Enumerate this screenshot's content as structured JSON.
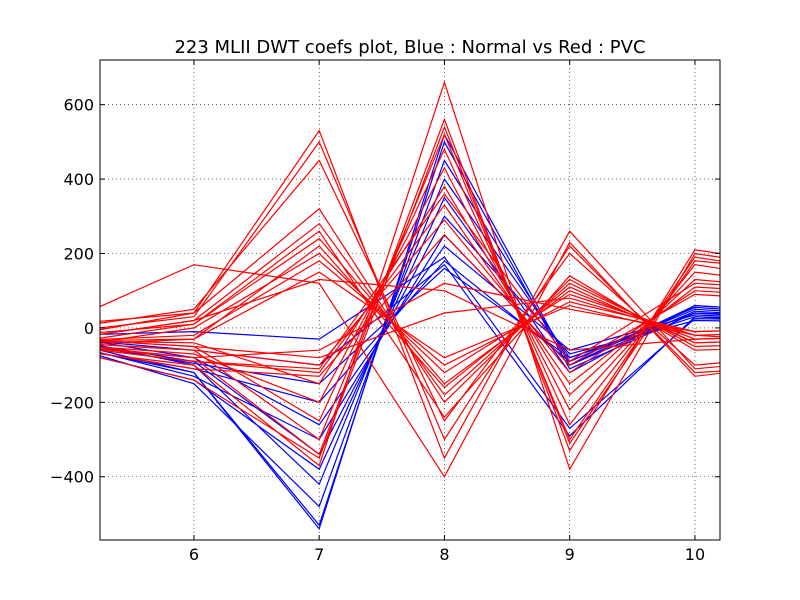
{
  "chart_data": {
    "type": "line",
    "title": "223 MLII DWT coefs plot, Blue : Normal vs Red : PVC",
    "xlabel": "",
    "ylabel": "",
    "xlim": [
      5.25,
      10.2
    ],
    "ylim": [
      -570,
      720
    ],
    "x_ticks": [
      6,
      7,
      8,
      9,
      10
    ],
    "y_ticks": [
      -400,
      -200,
      0,
      200,
      400,
      600
    ],
    "y_tick_labels": [
      "−400",
      "−200",
      "0",
      "200",
      "400",
      "600"
    ],
    "grid": true,
    "legend": "none",
    "x": [
      5,
      6,
      7,
      8,
      9,
      10,
      11
    ],
    "series": [
      {
        "color": "#0000ff",
        "role": "normal",
        "values": [
          -40,
          -120,
          -530,
          500,
          -110,
          40,
          20
        ]
      },
      {
        "color": "#0000ff",
        "role": "normal",
        "values": [
          -50,
          -150,
          -480,
          450,
          -90,
          50,
          30
        ]
      },
      {
        "color": "#0000ff",
        "role": "normal",
        "values": [
          -30,
          -100,
          -420,
          400,
          -80,
          30,
          10
        ]
      },
      {
        "color": "#0000ff",
        "role": "normal",
        "values": [
          -60,
          -140,
          -380,
          350,
          -120,
          60,
          40
        ]
      },
      {
        "color": "#0000ff",
        "role": "normal",
        "values": [
          -35,
          -90,
          -340,
          300,
          -70,
          20,
          15
        ]
      },
      {
        "color": "#0000ff",
        "role": "normal",
        "values": [
          -45,
          -130,
          -300,
          250,
          -100,
          45,
          25
        ]
      },
      {
        "color": "#0000ff",
        "role": "normal",
        "values": [
          -25,
          -80,
          -260,
          220,
          -60,
          35,
          20
        ]
      },
      {
        "color": "#0000ff",
        "role": "normal",
        "values": [
          -55,
          -110,
          -200,
          180,
          -90,
          55,
          35
        ]
      },
      {
        "color": "#0000ff",
        "role": "normal",
        "values": [
          -40,
          -95,
          -150,
          160,
          -80,
          40,
          30
        ]
      },
      {
        "color": "#0000ff",
        "role": "normal",
        "values": [
          -30,
          -60,
          -100,
          170,
          -290,
          30,
          20
        ]
      },
      {
        "color": "#0000ff",
        "role": "normal",
        "values": [
          -20,
          -10,
          -30,
          190,
          -270,
          25,
          20
        ]
      },
      {
        "color": "#0000ff",
        "role": "normal",
        "values": [
          -50,
          -120,
          -540,
          520,
          -100,
          60,
          40
        ]
      },
      {
        "color": "#ff0000",
        "role": "pvc",
        "values": [
          20,
          170,
          120,
          -400,
          230,
          -130,
          -90
        ]
      },
      {
        "color": "#ff0000",
        "role": "pvc",
        "values": [
          10,
          40,
          530,
          -350,
          260,
          -110,
          -80
        ]
      },
      {
        "color": "#ff0000",
        "role": "pvc",
        "values": [
          -10,
          30,
          500,
          -300,
          220,
          -120,
          -100
        ]
      },
      {
        "color": "#ff0000",
        "role": "pvc",
        "values": [
          0,
          50,
          450,
          -250,
          200,
          -100,
          -70
        ]
      },
      {
        "color": "#ff0000",
        "role": "pvc",
        "values": [
          -20,
          40,
          320,
          -200,
          130,
          -50,
          -40
        ]
      },
      {
        "color": "#ff0000",
        "role": "pvc",
        "values": [
          -30,
          20,
          280,
          -180,
          120,
          -40,
          -30
        ]
      },
      {
        "color": "#ff0000",
        "role": "pvc",
        "values": [
          -40,
          10,
          240,
          -150,
          100,
          -30,
          -20
        ]
      },
      {
        "color": "#ff0000",
        "role": "pvc",
        "values": [
          -50,
          0,
          200,
          -120,
          90,
          -20,
          -10
        ]
      },
      {
        "color": "#ff0000",
        "role": "pvc",
        "values": [
          -35,
          -20,
          180,
          -100,
          70,
          -10,
          0
        ]
      },
      {
        "color": "#ff0000",
        "role": "pvc",
        "values": [
          -45,
          -30,
          150,
          -80,
          60,
          -20,
          -10
        ]
      },
      {
        "color": "#ff0000",
        "role": "pvc",
        "values": [
          -30,
          20,
          130,
          100,
          -60,
          -30,
          -20
        ]
      },
      {
        "color": "#ff0000",
        "role": "pvc",
        "values": [
          -60,
          -100,
          -370,
          660,
          -380,
          200,
          150
        ]
      },
      {
        "color": "#ff0000",
        "role": "pvc",
        "values": [
          -50,
          -80,
          -340,
          560,
          -330,
          210,
          160
        ]
      },
      {
        "color": "#ff0000",
        "role": "pvc",
        "values": [
          -40,
          -60,
          -300,
          520,
          -300,
          190,
          140
        ]
      },
      {
        "color": "#ff0000",
        "role": "pvc",
        "values": [
          -30,
          -50,
          -250,
          480,
          -260,
          170,
          120
        ]
      },
      {
        "color": "#ff0000",
        "role": "pvc",
        "values": [
          -45,
          -70,
          -200,
          430,
          -220,
          150,
          110
        ]
      },
      {
        "color": "#ff0000",
        "role": "pvc",
        "values": [
          -35,
          -40,
          -150,
          380,
          -180,
          130,
          100
        ]
      },
      {
        "color": "#ff0000",
        "role": "pvc",
        "values": [
          -50,
          -90,
          -120,
          330,
          -150,
          110,
          90
        ]
      },
      {
        "color": "#ff0000",
        "role": "pvc",
        "values": [
          -40,
          -60,
          -100,
          290,
          -120,
          100,
          80
        ]
      },
      {
        "color": "#ff0000",
        "role": "pvc",
        "values": [
          -55,
          -110,
          -130,
          250,
          -100,
          90,
          70
        ]
      },
      {
        "color": "#ff0000",
        "role": "pvc",
        "values": [
          -30,
          -50,
          -80,
          40,
          80,
          -20,
          -40
        ]
      },
      {
        "color": "#ff0000",
        "role": "pvc",
        "values": [
          -45,
          -80,
          -60,
          120,
          50,
          -10,
          0
        ]
      },
      {
        "color": "#ff0000",
        "role": "pvc",
        "values": [
          -60,
          -140,
          -350,
          540,
          -310,
          180,
          150
        ]
      },
      {
        "color": "#ff0000",
        "role": "pvc",
        "values": [
          -20,
          10,
          260,
          -240,
          140,
          -60,
          -50
        ]
      },
      {
        "color": "#ff0000",
        "role": "pvc",
        "values": [
          -50,
          -90,
          -110,
          360,
          -90,
          120,
          100
        ]
      },
      {
        "color": "#ff0000",
        "role": "pvc",
        "values": [
          -35,
          -30,
          220,
          -160,
          110,
          -40,
          -30
        ]
      }
    ]
  }
}
